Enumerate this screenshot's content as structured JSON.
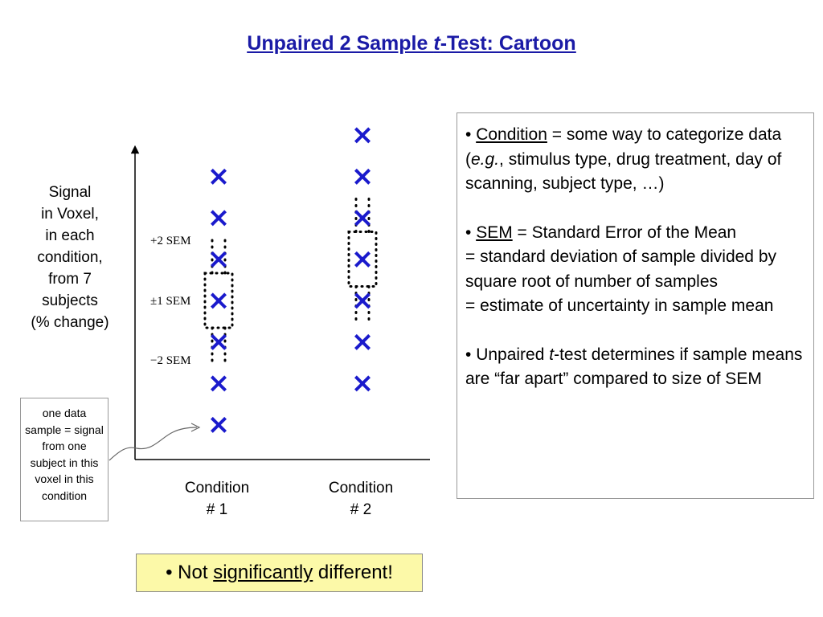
{
  "title": {
    "part1": "Unpaired 2 Sample ",
    "italic": "t",
    "part2": "-Test: Cartoon"
  },
  "y_axis_label": [
    "Signal",
    "in Voxel,",
    "in each",
    "condition,",
    "from 7",
    "subjects",
    "(% change)"
  ],
  "sem_labels": {
    "plus2": "+2 SEM",
    "plus1": "±1 SEM",
    "minus2": "−2 SEM"
  },
  "conditions": [
    {
      "line1": "Condition",
      "line2": "# 1"
    },
    {
      "line1": "Condition",
      "line2": "# 2"
    }
  ],
  "annotation": {
    "text": "one data sample = signal from one subject in this voxel in this condition"
  },
  "info_box": {
    "bullet1": {
      "term": "Condition",
      "t1": " = some way to categorize data (",
      "eg": "e.g.",
      "t2": ", stimulus type, drug treatment, day of scanning, subject type, …)"
    },
    "bullet2": {
      "term": "SEM",
      "line1": " = Standard Error of the Mean",
      "line2": "= standard deviation of sample divided by square root of number of samples",
      "line3": "= estimate of uncertainty in sample mean"
    },
    "bullet3": {
      "t1": "Unpaired ",
      "italic": "t",
      "t2": "-test determines if sample means are “far apart” compared to size of SEM"
    }
  },
  "verdict": {
    "prefix": "• Not ",
    "emph": "significantly",
    "suffix": " different!"
  },
  "marker_symbol": "×",
  "colors": {
    "title": "#1a1aa6",
    "marker": "#1a1acc",
    "verdict_bg": "#fcf9a8"
  },
  "chart_data": {
    "type": "scatter",
    "categories": [
      "Condition # 1",
      "Condition # 2"
    ],
    "series": [
      {
        "category": "Condition # 1",
        "values": [
          7,
          6,
          5,
          4,
          3,
          2,
          1
        ]
      },
      {
        "category": "Condition # 2",
        "values": [
          8,
          7,
          6,
          5,
          4,
          3,
          2
        ]
      }
    ],
    "means": [
      4,
      5
    ],
    "sem_bands": "dotted boxes at ±1 SEM and ±2 SEM around each mean",
    "grid": false
  }
}
